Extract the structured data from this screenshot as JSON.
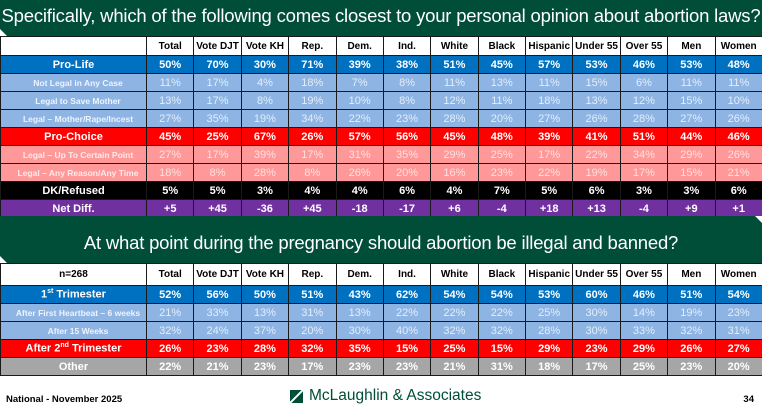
{
  "colors": {
    "banner": "#004d38",
    "pro_life": "#0070c0",
    "pro_life_sub": "#8eb4e3",
    "pro_choice": "#ff0000",
    "pro_choice_sub": "#ff9999",
    "dk": "#000000",
    "net": "#7030a0",
    "other": "#a6a6a6"
  },
  "columns": [
    "Total",
    "Vote DJT",
    "Vote KH",
    "Rep.",
    "Dem.",
    "Ind.",
    "White",
    "Black",
    "Hispanic",
    "Under 55",
    "Over 55",
    "Men",
    "Women"
  ],
  "table1": {
    "title": "Specifically, which of the following comes closest to your personal opinion about abortion laws?",
    "corner_label": "",
    "rows": [
      {
        "label": "Pro-Life",
        "style": "main-blue",
        "values": [
          "50%",
          "70%",
          "30%",
          "71%",
          "39%",
          "38%",
          "51%",
          "45%",
          "57%",
          "53%",
          "46%",
          "53%",
          "48%"
        ]
      },
      {
        "label": "Not Legal in Any Case",
        "style": "sub-blue",
        "values": [
          "11%",
          "17%",
          "4%",
          "18%",
          "7%",
          "8%",
          "11%",
          "13%",
          "11%",
          "15%",
          "6%",
          "11%",
          "11%"
        ]
      },
      {
        "label": "Legal to Save Mother",
        "style": "sub-blue",
        "values": [
          "13%",
          "17%",
          "8%",
          "19%",
          "10%",
          "8%",
          "12%",
          "11%",
          "18%",
          "13%",
          "12%",
          "15%",
          "10%"
        ]
      },
      {
        "label": "Legal – Mother/Rape/Incest",
        "style": "sub-blue",
        "values": [
          "27%",
          "35%",
          "19%",
          "34%",
          "22%",
          "23%",
          "28%",
          "20%",
          "27%",
          "26%",
          "28%",
          "27%",
          "26%"
        ]
      },
      {
        "label": "Pro-Choice",
        "style": "main-red",
        "values": [
          "45%",
          "25%",
          "67%",
          "26%",
          "57%",
          "56%",
          "45%",
          "48%",
          "39%",
          "41%",
          "51%",
          "44%",
          "46%"
        ]
      },
      {
        "label": "Legal – Up To Certain Point",
        "style": "sub-pink",
        "values": [
          "27%",
          "17%",
          "39%",
          "17%",
          "31%",
          "35%",
          "29%",
          "25%",
          "17%",
          "22%",
          "34%",
          "29%",
          "26%"
        ]
      },
      {
        "label": "Legal – Any Reason/Any Time",
        "style": "sub-pink",
        "values": [
          "18%",
          "8%",
          "28%",
          "8%",
          "26%",
          "20%",
          "16%",
          "23%",
          "22%",
          "19%",
          "17%",
          "15%",
          "21%"
        ]
      },
      {
        "label": "DK/Refused",
        "style": "main-black",
        "values": [
          "5%",
          "5%",
          "3%",
          "4%",
          "4%",
          "6%",
          "4%",
          "7%",
          "5%",
          "6%",
          "3%",
          "3%",
          "6%"
        ]
      },
      {
        "label": "Net Diff.",
        "style": "main-purple",
        "values": [
          "+5",
          "+45",
          "-36",
          "+45",
          "-18",
          "-17",
          "+6",
          "-4",
          "+18",
          "+13",
          "-4",
          "+9",
          "+1"
        ]
      }
    ]
  },
  "table2": {
    "title": "At what point during the pregnancy should abortion be illegal and banned?",
    "corner_label": "n=268",
    "rows": [
      {
        "label": "1",
        "sup": "st",
        "label_rest": " Trimester",
        "style": "main-blue",
        "values": [
          "52%",
          "56%",
          "50%",
          "51%",
          "43%",
          "62%",
          "54%",
          "54%",
          "53%",
          "60%",
          "46%",
          "51%",
          "54%"
        ]
      },
      {
        "label": "After First Heartbeat – 6 weeks",
        "style": "sub-blue",
        "values": [
          "21%",
          "33%",
          "13%",
          "31%",
          "13%",
          "22%",
          "22%",
          "22%",
          "25%",
          "30%",
          "14%",
          "19%",
          "23%"
        ]
      },
      {
        "label": "After 15 Weeks",
        "style": "sub-blue",
        "values": [
          "32%",
          "24%",
          "37%",
          "20%",
          "30%",
          "40%",
          "32%",
          "32%",
          "28%",
          "30%",
          "33%",
          "32%",
          "31%"
        ]
      },
      {
        "label": "After 2",
        "sup": "nd",
        "label_rest": " Trimester",
        "style": "main-red",
        "values": [
          "26%",
          "23%",
          "28%",
          "32%",
          "35%",
          "15%",
          "25%",
          "15%",
          "29%",
          "23%",
          "29%",
          "26%",
          "27%"
        ]
      },
      {
        "label": "Other",
        "style": "main-gray",
        "values": [
          "22%",
          "21%",
          "23%",
          "17%",
          "23%",
          "23%",
          "21%",
          "31%",
          "18%",
          "17%",
          "25%",
          "23%",
          "20%"
        ]
      }
    ]
  },
  "footer": {
    "left": "National - November 2025",
    "brand": "McLaughlin & Associates",
    "page": "34"
  }
}
